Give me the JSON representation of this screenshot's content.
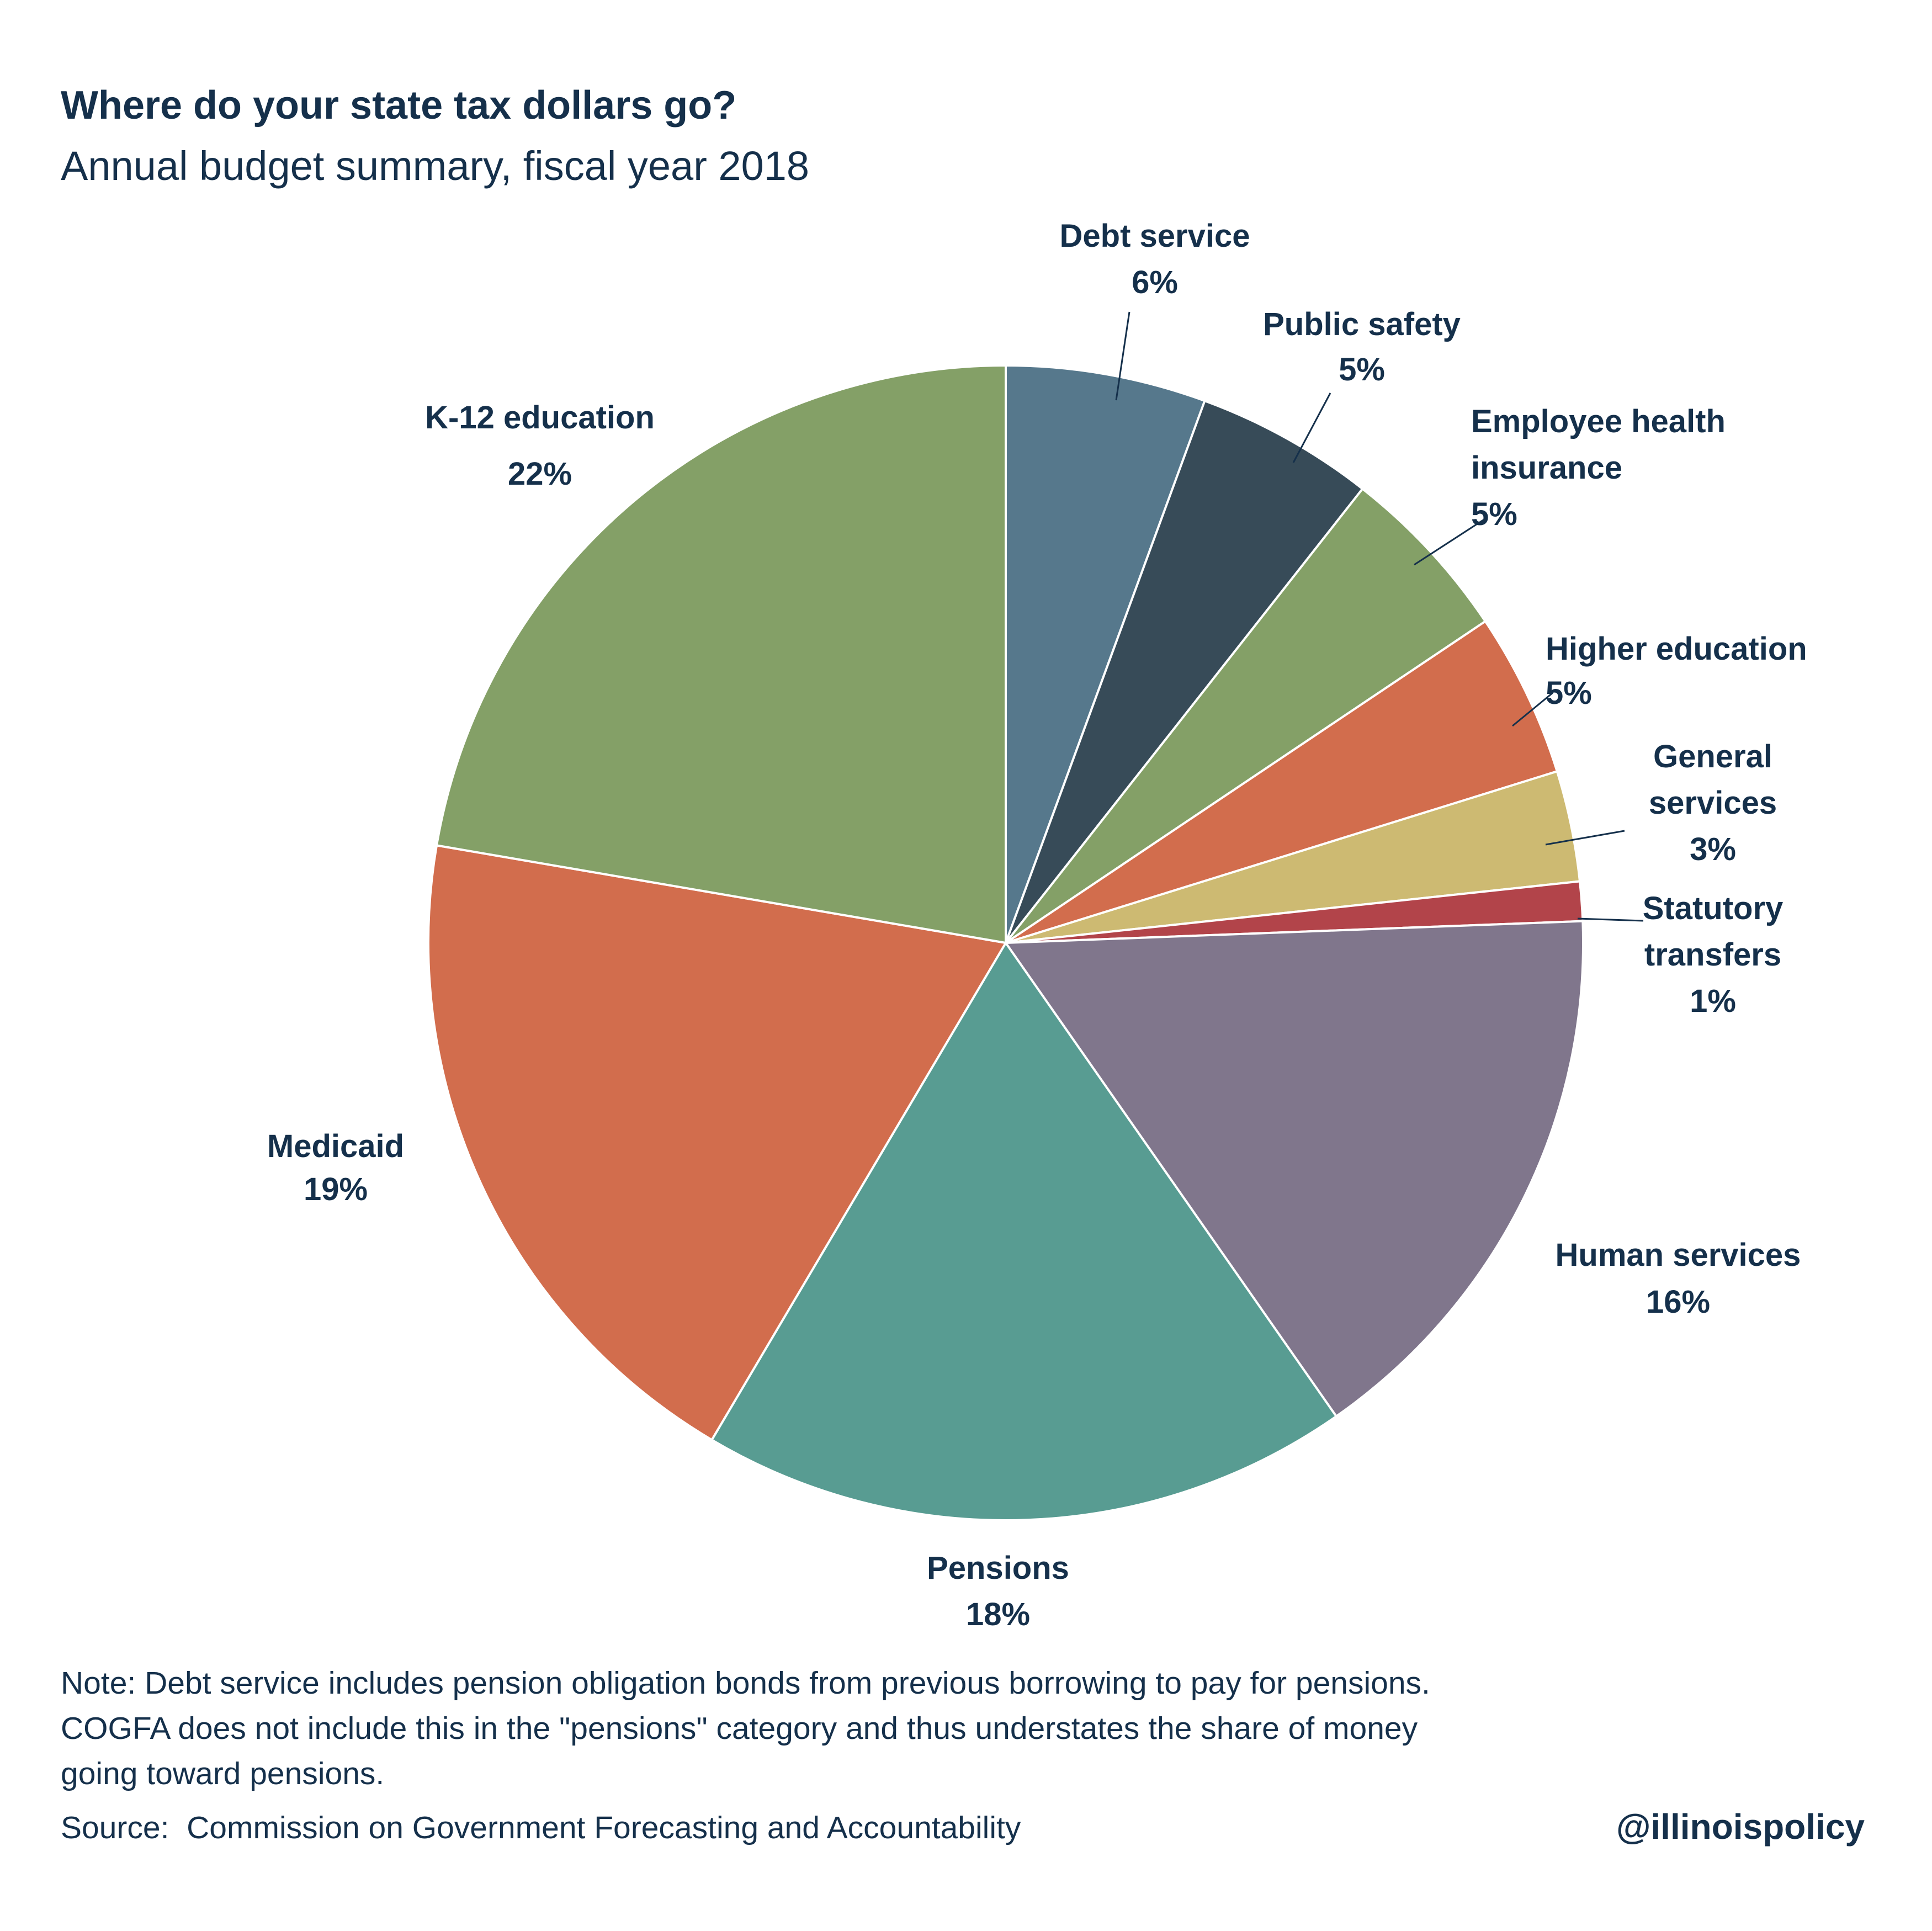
{
  "title": "Where do your state tax dollars go?",
  "subtitle": "Annual budget summary, fiscal year 2018",
  "chart_data": {
    "type": "pie",
    "unit": "%",
    "slices": [
      {
        "name": "Debt service",
        "label_lines": [
          "Debt service",
          "6%"
        ],
        "value": 5.6,
        "color": "#56788c"
      },
      {
        "name": "Public safety",
        "label_lines": [
          "Public safety",
          "5%"
        ],
        "value": 5.0,
        "color": "#374b58"
      },
      {
        "name": "Employee health insurance",
        "label_lines": [
          "Employee health",
          "insurance",
          "5%"
        ],
        "value": 5.0,
        "color": "#84a067"
      },
      {
        "name": "Higher education",
        "label_lines": [
          "Higher education",
          "5%"
        ],
        "value": 4.6,
        "color": "#d26d4d"
      },
      {
        "name": "General services",
        "label_lines": [
          "General",
          "services",
          "3%"
        ],
        "value": 3.1,
        "color": "#cdba72"
      },
      {
        "name": "Statutory transfers",
        "label_lines": [
          "Statutory",
          "transfers",
          "1%"
        ],
        "value": 1.1,
        "color": "#b2444a"
      },
      {
        "name": "Human services",
        "label_lines": [
          "Human services",
          "16%"
        ],
        "value": 15.9,
        "color": "#80768c"
      },
      {
        "name": "Pensions",
        "label_lines": [
          "Pensions",
          "18%"
        ],
        "value": 18.2,
        "color": "#589c92"
      },
      {
        "name": "Medicaid",
        "label_lines": [
          "Medicaid",
          "19%"
        ],
        "value": 19.2,
        "color": "#d26d4d"
      },
      {
        "name": "K-12 education",
        "label_lines": [
          "K-12 education",
          "22%"
        ],
        "value": 22.3,
        "color": "#84a067"
      }
    ]
  },
  "note_lines": [
    "Note: Debt service includes pension obligation bonds from previous borrowing to pay for pensions.",
    "COGFA does not include this in the \"pensions\" category and thus understates the share of money",
    "going toward pensions."
  ],
  "source": "Source:  Commission on Government Forecasting and Accountability",
  "handle": "@illinoispolicy"
}
